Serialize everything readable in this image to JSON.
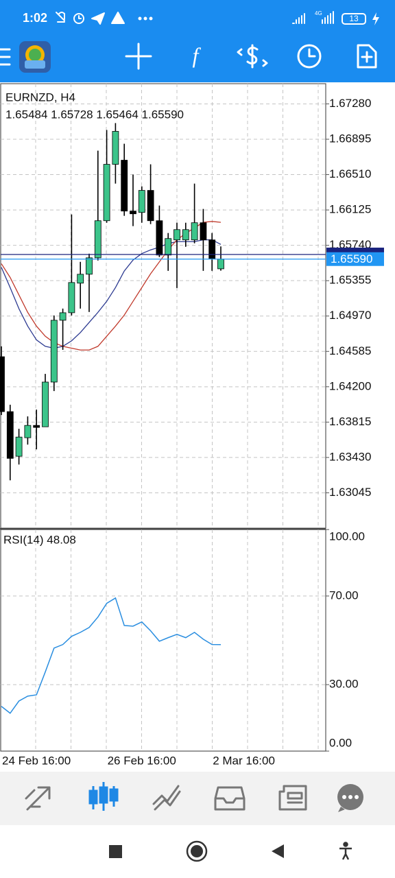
{
  "status_bar": {
    "time": "1:02",
    "network": "4G",
    "battery": "13"
  },
  "chart_data": [
    {
      "type": "candlestick",
      "title": "EURNZD, H4",
      "subtitle": "1.65484 1.65728 1.65464 1.65590",
      "categories": [
        "24 Feb 16:00",
        null,
        null,
        null,
        null,
        null,
        null,
        null,
        null,
        null,
        null,
        null,
        "26 Feb 16:00",
        null,
        null,
        null,
        null,
        null,
        null,
        null,
        null,
        null,
        null,
        null,
        "2 Mar 16:00",
        null
      ],
      "open": [
        1.64527,
        1.63929,
        1.63443,
        1.63645,
        1.63779,
        1.63764,
        1.64251,
        1.64924,
        1.65006,
        1.65328,
        1.65425,
        1.65604,
        1.66008,
        1.66622,
        1.66667,
        1.66113,
        1.66098,
        1.66338,
        1.66008,
        1.65634,
        1.65799,
        1.65799,
        1.65799,
        1.65986,
        1.65799,
        1.65484
      ],
      "high": [
        1.6464,
        1.64004,
        1.63742,
        1.63877,
        1.63951,
        1.6434,
        1.64976,
        1.65051,
        1.66076,
        1.6556,
        1.65649,
        1.66771,
        1.66996,
        1.67071,
        1.66846,
        1.6651,
        1.66382,
        1.66622,
        1.66173,
        1.65874,
        1.65986,
        1.65986,
        1.66412,
        1.66136,
        1.65874,
        1.65728
      ],
      "low": [
        1.63892,
        1.63181,
        1.63353,
        1.6357,
        1.63518,
        1.63764,
        1.64153,
        1.64602,
        1.64976,
        1.65051,
        1.65014,
        1.65575,
        1.65986,
        1.66412,
        1.66061,
        1.65949,
        1.65986,
        1.65971,
        1.65612,
        1.65462,
        1.65275,
        1.65724,
        1.65762,
        1.65462,
        1.65462,
        1.65464
      ],
      "close": [
        1.63929,
        1.6342,
        1.63652,
        1.63779,
        1.63757,
        1.64251,
        1.64924,
        1.65006,
        1.65335,
        1.65425,
        1.65604,
        1.66008,
        1.66622,
        1.66981,
        1.66113,
        1.66083,
        1.66338,
        1.66008,
        1.65634,
        1.65814,
        1.65911,
        1.65911,
        1.65986,
        1.65799,
        1.65597,
        1.6559
      ],
      "up_color": "#3cc48a",
      "down_color": "#000000",
      "series": [
        {
          "color": "#2b3990",
          "values": [
            1.655,
            1.6528,
            1.6505,
            1.6486,
            1.6471,
            1.6464,
            1.6462,
            1.6464,
            1.647,
            1.6479,
            1.649,
            1.6501,
            1.6513,
            1.6528,
            1.6546,
            1.6558,
            1.6565,
            1.6569,
            1.6572,
            1.6576,
            1.6578,
            1.6578,
            1.6578,
            1.658,
            1.658,
            1.6575
          ]
        },
        {
          "color": "#c0392b",
          "values": [
            1.6554,
            1.6539,
            1.652,
            1.6501,
            1.6486,
            1.6475,
            1.6468,
            1.6464,
            1.6462,
            1.646,
            1.646,
            1.6464,
            1.6475,
            1.6486,
            1.6498,
            1.6513,
            1.6528,
            1.6543,
            1.6556,
            1.6569,
            1.658,
            1.6587,
            1.6593,
            1.6599,
            1.66,
            1.6599
          ]
        }
      ],
      "price_lines": [
        {
          "value": 1.6564,
          "color": "#1a237e"
        },
        {
          "value": 1.6559,
          "label": "1.65590",
          "color": "#2196f3"
        }
      ],
      "ylim": [
        1.6266,
        1.675
      ],
      "yticks": [
        {
          "value": 1.6728,
          "label": "1.67280"
        },
        {
          "value": 1.66895,
          "label": "1.66895"
        },
        {
          "value": 1.6651,
          "label": "1.66510"
        },
        {
          "value": 1.66125,
          "label": "1.66125"
        },
        {
          "value": 1.6574,
          "label": "1.65740"
        },
        {
          "value": 1.65355,
          "label": "1.65355"
        },
        {
          "value": 1.6497,
          "label": "1.64970"
        },
        {
          "value": 1.64585,
          "label": "1.64585"
        },
        {
          "value": 1.642,
          "label": "1.64200"
        },
        {
          "value": 1.63815,
          "label": "1.63815"
        },
        {
          "value": 1.6343,
          "label": "1.63430"
        },
        {
          "value": 1.63045,
          "label": "1.63045"
        }
      ],
      "grid": true
    },
    {
      "type": "line",
      "title": "RSI(14) 48.08",
      "color": "#2a8ee0",
      "values": [
        20.2,
        17.1,
        22.6,
        24.8,
        25.4,
        35.7,
        46.5,
        48.1,
        51.8,
        53.6,
        55.8,
        60.5,
        66.7,
        69.1,
        56.7,
        56.4,
        58.3,
        54.3,
        49.6,
        51.2,
        52.7,
        51.2,
        53.6,
        50.5,
        48.1,
        48.08
      ],
      "ylim": [
        0,
        100
      ],
      "yticks": [
        {
          "value": 100,
          "label": "100.00"
        },
        {
          "value": 70,
          "label": "70.00"
        },
        {
          "value": 30,
          "label": "30.00"
        },
        {
          "value": 0,
          "label": "0.00"
        }
      ],
      "grid": true
    }
  ]
}
